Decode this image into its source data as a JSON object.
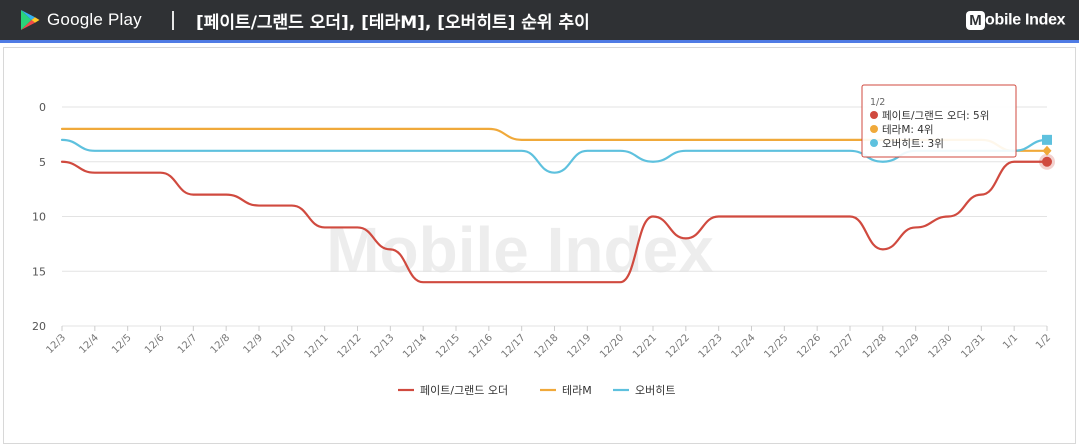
{
  "header": {
    "store_name": "Google Play",
    "title": "[페이트/그랜드 오더], [테라M], [오버히트] 순위 추이",
    "brand_letter": "M",
    "brand_rest": "obile Index"
  },
  "watermark": "Mobile Index",
  "chart_data": {
    "type": "line",
    "title": "[페이트/그랜드 오더], [테라M], [오버히트] 순위 추이",
    "xlabel": "",
    "ylabel": "",
    "categories": [
      "12/3",
      "12/4",
      "12/5",
      "12/6",
      "12/7",
      "12/8",
      "12/9",
      "12/10",
      "12/11",
      "12/12",
      "12/13",
      "12/14",
      "12/15",
      "12/16",
      "12/17",
      "12/18",
      "12/19",
      "12/20",
      "12/21",
      "12/22",
      "12/23",
      "12/24",
      "12/25",
      "12/26",
      "12/27",
      "12/28",
      "12/29",
      "12/30",
      "12/31",
      "1/1",
      "1/2"
    ],
    "ylim": [
      0,
      20
    ],
    "y_reversed": true,
    "yticks": [
      0,
      5,
      10,
      15,
      20
    ],
    "grid": true,
    "legend_position": "bottom",
    "series": [
      {
        "name": "페이트/그랜드 오더",
        "color": "#d04a3f",
        "values": [
          5,
          6,
          6,
          6,
          8,
          8,
          9,
          9,
          11,
          11,
          13,
          16,
          16,
          16,
          16,
          16,
          16,
          16,
          10,
          12,
          10,
          10,
          10,
          10,
          10,
          13,
          11,
          10,
          8,
          5,
          5
        ]
      },
      {
        "name": "테라M",
        "color": "#f0a93a",
        "values": [
          2,
          2,
          2,
          2,
          2,
          2,
          2,
          2,
          2,
          2,
          2,
          2,
          2,
          2,
          3,
          3,
          3,
          3,
          3,
          3,
          3,
          3,
          3,
          3,
          3,
          3,
          3,
          3,
          3,
          4,
          4
        ]
      },
      {
        "name": "오버히트",
        "color": "#5ec1de",
        "values": [
          3,
          4,
          4,
          4,
          4,
          4,
          4,
          4,
          4,
          4,
          4,
          4,
          4,
          4,
          4,
          6,
          4,
          4,
          5,
          4,
          4,
          4,
          4,
          4,
          4,
          5,
          4,
          4,
          4,
          4,
          3
        ]
      }
    ],
    "tooltip": {
      "title": "1/2",
      "items": [
        {
          "label": "페이트/그랜드 오더: 5위",
          "color": "#d04a3f"
        },
        {
          "label": "테라M: 4위",
          "color": "#f0a93a"
        },
        {
          "label": "오버히트: 3위",
          "color": "#5ec1de"
        }
      ]
    }
  }
}
